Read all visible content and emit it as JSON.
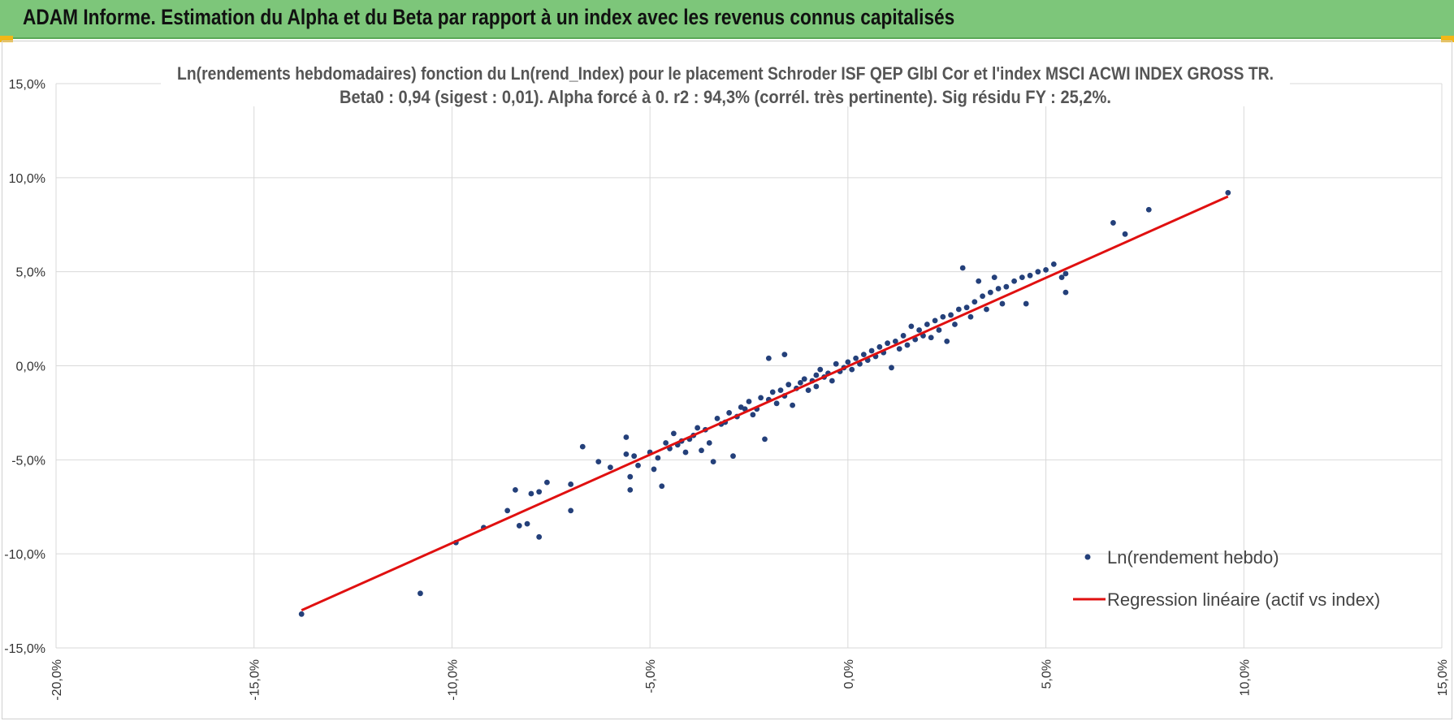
{
  "header": {
    "title": "ADAM Informe. Estimation du Alpha et du Beta par rapport à un index avec les revenus connus capitalisés"
  },
  "colors": {
    "header_bg": "#7dc67a",
    "corner_accent": "#f2b718",
    "points": "#24407a",
    "regression_line": "#e01010",
    "gridlines": "#d9d9d9"
  },
  "chart_data": {
    "type": "scatter",
    "title": "Ln(rendements hebdomadaires) fonction du Ln(rend_Index) pour le placement Schroder ISF QEP Glbl Cor et l'index MSCI ACWI INDEX GROSS TR.",
    "subtitle": "Beta0 : 0,94 (sigest : 0,01). Alpha forcé à 0. r2 : 94,3% (corrél. très pertinente). Sig résidu FY : 25,2%.",
    "xlabel": "",
    "ylabel": "",
    "xlim": [
      -0.2,
      0.15
    ],
    "ylim": [
      -0.15,
      0.15
    ],
    "x_ticks": [
      -0.2,
      -0.15,
      -0.1,
      -0.05,
      0.0,
      0.05,
      0.1,
      0.15
    ],
    "y_ticks": [
      -0.15,
      -0.1,
      -0.05,
      0.0,
      0.05,
      0.1,
      0.15
    ],
    "x_tick_labels": [
      "-20,0%",
      "-15,0%",
      "-10,0%",
      "-5,0%",
      "0,0%",
      "5,0%",
      "10,0%",
      "15,0%"
    ],
    "y_tick_labels": [
      "-15,0%",
      "-10,0%",
      "-5,0%",
      "0,0%",
      "5,0%",
      "10,0%",
      "15,0%"
    ],
    "grid": true,
    "legend_position": "bottom-right",
    "series": [
      {
        "name": "Ln(rendement hebdo)",
        "type": "scatter",
        "color": "#24407a",
        "points": [
          [
            -0.138,
            -0.132
          ],
          [
            -0.108,
            -0.121
          ],
          [
            -0.099,
            -0.094
          ],
          [
            -0.092,
            -0.086
          ],
          [
            -0.086,
            -0.077
          ],
          [
            -0.084,
            -0.066
          ],
          [
            -0.083,
            -0.085
          ],
          [
            -0.081,
            -0.084
          ],
          [
            -0.08,
            -0.068
          ],
          [
            -0.078,
            -0.067
          ],
          [
            -0.078,
            -0.091
          ],
          [
            -0.076,
            -0.062
          ],
          [
            -0.07,
            -0.063
          ],
          [
            -0.07,
            -0.077
          ],
          [
            -0.067,
            -0.043
          ],
          [
            -0.063,
            -0.051
          ],
          [
            -0.06,
            -0.054
          ],
          [
            -0.056,
            -0.038
          ],
          [
            -0.056,
            -0.047
          ],
          [
            -0.055,
            -0.059
          ],
          [
            -0.055,
            -0.066
          ],
          [
            -0.054,
            -0.048
          ],
          [
            -0.053,
            -0.053
          ],
          [
            -0.05,
            -0.046
          ],
          [
            -0.049,
            -0.055
          ],
          [
            -0.048,
            -0.049
          ],
          [
            -0.047,
            -0.064
          ],
          [
            -0.046,
            -0.041
          ],
          [
            -0.045,
            -0.044
          ],
          [
            -0.044,
            -0.036
          ],
          [
            -0.043,
            -0.042
          ],
          [
            -0.042,
            -0.04
          ],
          [
            -0.041,
            -0.046
          ],
          [
            -0.04,
            -0.039
          ],
          [
            -0.039,
            -0.037
          ],
          [
            -0.038,
            -0.033
          ],
          [
            -0.037,
            -0.045
          ],
          [
            -0.036,
            -0.034
          ],
          [
            -0.035,
            -0.041
          ],
          [
            -0.034,
            -0.051
          ],
          [
            -0.033,
            -0.028
          ],
          [
            -0.032,
            -0.031
          ],
          [
            -0.031,
            -0.03
          ],
          [
            -0.03,
            -0.025
          ],
          [
            -0.029,
            -0.048
          ],
          [
            -0.028,
            -0.027
          ],
          [
            -0.027,
            -0.022
          ],
          [
            -0.026,
            -0.023
          ],
          [
            -0.025,
            -0.019
          ],
          [
            -0.024,
            -0.026
          ],
          [
            -0.023,
            -0.023
          ],
          [
            -0.022,
            -0.017
          ],
          [
            -0.021,
            -0.039
          ],
          [
            -0.02,
            -0.018
          ],
          [
            -0.02,
            0.004
          ],
          [
            -0.019,
            -0.014
          ],
          [
            -0.018,
            -0.02
          ],
          [
            -0.017,
            -0.013
          ],
          [
            -0.016,
            0.006
          ],
          [
            -0.016,
            -0.016
          ],
          [
            -0.015,
            -0.01
          ],
          [
            -0.014,
            -0.021
          ],
          [
            -0.013,
            -0.012
          ],
          [
            -0.012,
            -0.009
          ],
          [
            -0.011,
            -0.007
          ],
          [
            -0.01,
            -0.013
          ],
          [
            -0.009,
            -0.008
          ],
          [
            -0.008,
            -0.005
          ],
          [
            -0.008,
            -0.011
          ],
          [
            -0.007,
            -0.002
          ],
          [
            -0.006,
            -0.006
          ],
          [
            -0.005,
            -0.004
          ],
          [
            -0.004,
            -0.008
          ],
          [
            -0.003,
            0.001
          ],
          [
            -0.002,
            -0.003
          ],
          [
            -0.001,
            -0.001
          ],
          [
            0.0,
            0.002
          ],
          [
            0.001,
            -0.002
          ],
          [
            0.002,
            0.004
          ],
          [
            0.003,
            0.001
          ],
          [
            0.004,
            0.006
          ],
          [
            0.005,
            0.003
          ],
          [
            0.006,
            0.008
          ],
          [
            0.007,
            0.005
          ],
          [
            0.008,
            0.01
          ],
          [
            0.009,
            0.007
          ],
          [
            0.01,
            0.012
          ],
          [
            0.011,
            -0.001
          ],
          [
            0.012,
            0.013
          ],
          [
            0.013,
            0.009
          ],
          [
            0.014,
            0.016
          ],
          [
            0.015,
            0.011
          ],
          [
            0.016,
            0.021
          ],
          [
            0.017,
            0.014
          ],
          [
            0.018,
            0.019
          ],
          [
            0.019,
            0.016
          ],
          [
            0.02,
            0.022
          ],
          [
            0.021,
            0.015
          ],
          [
            0.022,
            0.024
          ],
          [
            0.023,
            0.019
          ],
          [
            0.024,
            0.026
          ],
          [
            0.025,
            0.013
          ],
          [
            0.026,
            0.027
          ],
          [
            0.027,
            0.022
          ],
          [
            0.028,
            0.03
          ],
          [
            0.029,
            0.052
          ],
          [
            0.03,
            0.031
          ],
          [
            0.031,
            0.026
          ],
          [
            0.032,
            0.034
          ],
          [
            0.033,
            0.045
          ],
          [
            0.034,
            0.037
          ],
          [
            0.035,
            0.03
          ],
          [
            0.036,
            0.039
          ],
          [
            0.037,
            0.047
          ],
          [
            0.038,
            0.041
          ],
          [
            0.039,
            0.033
          ],
          [
            0.04,
            0.042
          ],
          [
            0.042,
            0.045
          ],
          [
            0.044,
            0.047
          ],
          [
            0.045,
            0.033
          ],
          [
            0.046,
            0.048
          ],
          [
            0.048,
            0.05
          ],
          [
            0.05,
            0.051
          ],
          [
            0.052,
            0.054
          ],
          [
            0.054,
            0.047
          ],
          [
            0.055,
            0.049
          ],
          [
            0.055,
            0.039
          ],
          [
            0.067,
            0.076
          ],
          [
            0.07,
            0.07
          ],
          [
            0.076,
            0.083
          ],
          [
            0.096,
            0.092
          ]
        ]
      },
      {
        "name": "Regression linéaire (actif vs index)",
        "type": "line",
        "color": "#e01010",
        "x": [
          -0.138,
          0.096
        ],
        "y": [
          -0.13,
          0.09
        ]
      }
    ]
  }
}
